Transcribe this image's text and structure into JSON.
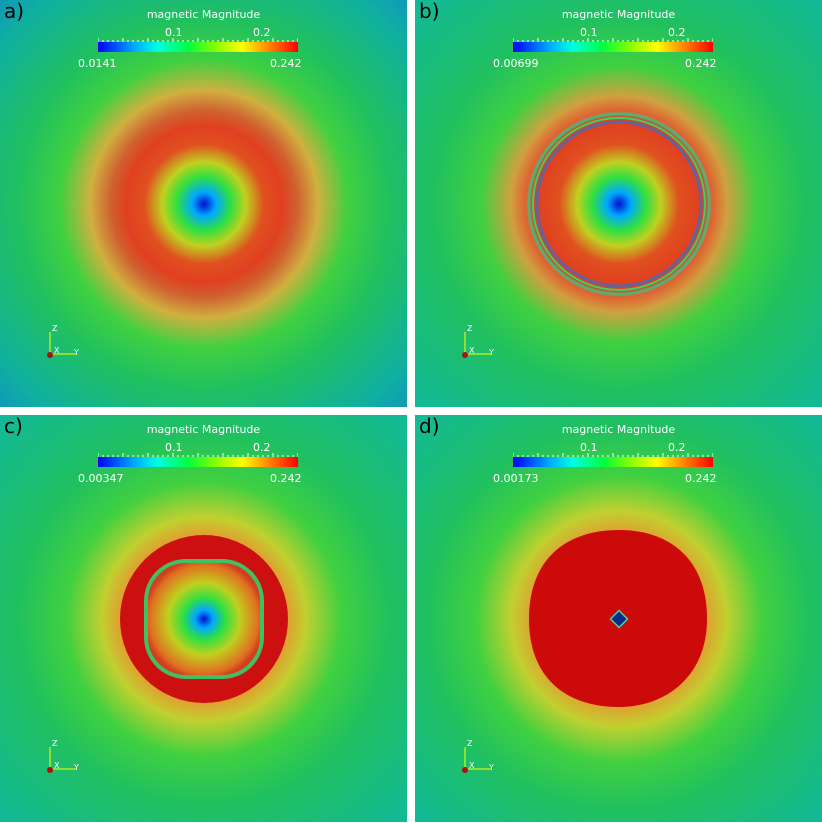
{
  "colorbar": {
    "title": "magnetic Magnitude",
    "tick_0_1": "0.1",
    "tick_0_2": "0.2",
    "max": "0.242"
  },
  "axes": {
    "z": "Z",
    "x": "X",
    "y": "Y"
  },
  "panels": [
    {
      "label": "a)",
      "min": "0.0141"
    },
    {
      "label": "b)",
      "min": "0.00699"
    },
    {
      "label": "c)",
      "min": "0.00347"
    },
    {
      "label": "d)",
      "min": "0.00173"
    }
  ],
  "colors": {
    "background": "#1fc08f",
    "green": "#22cc22",
    "red": "#d62a12",
    "center_blue": "#0033cc"
  }
}
